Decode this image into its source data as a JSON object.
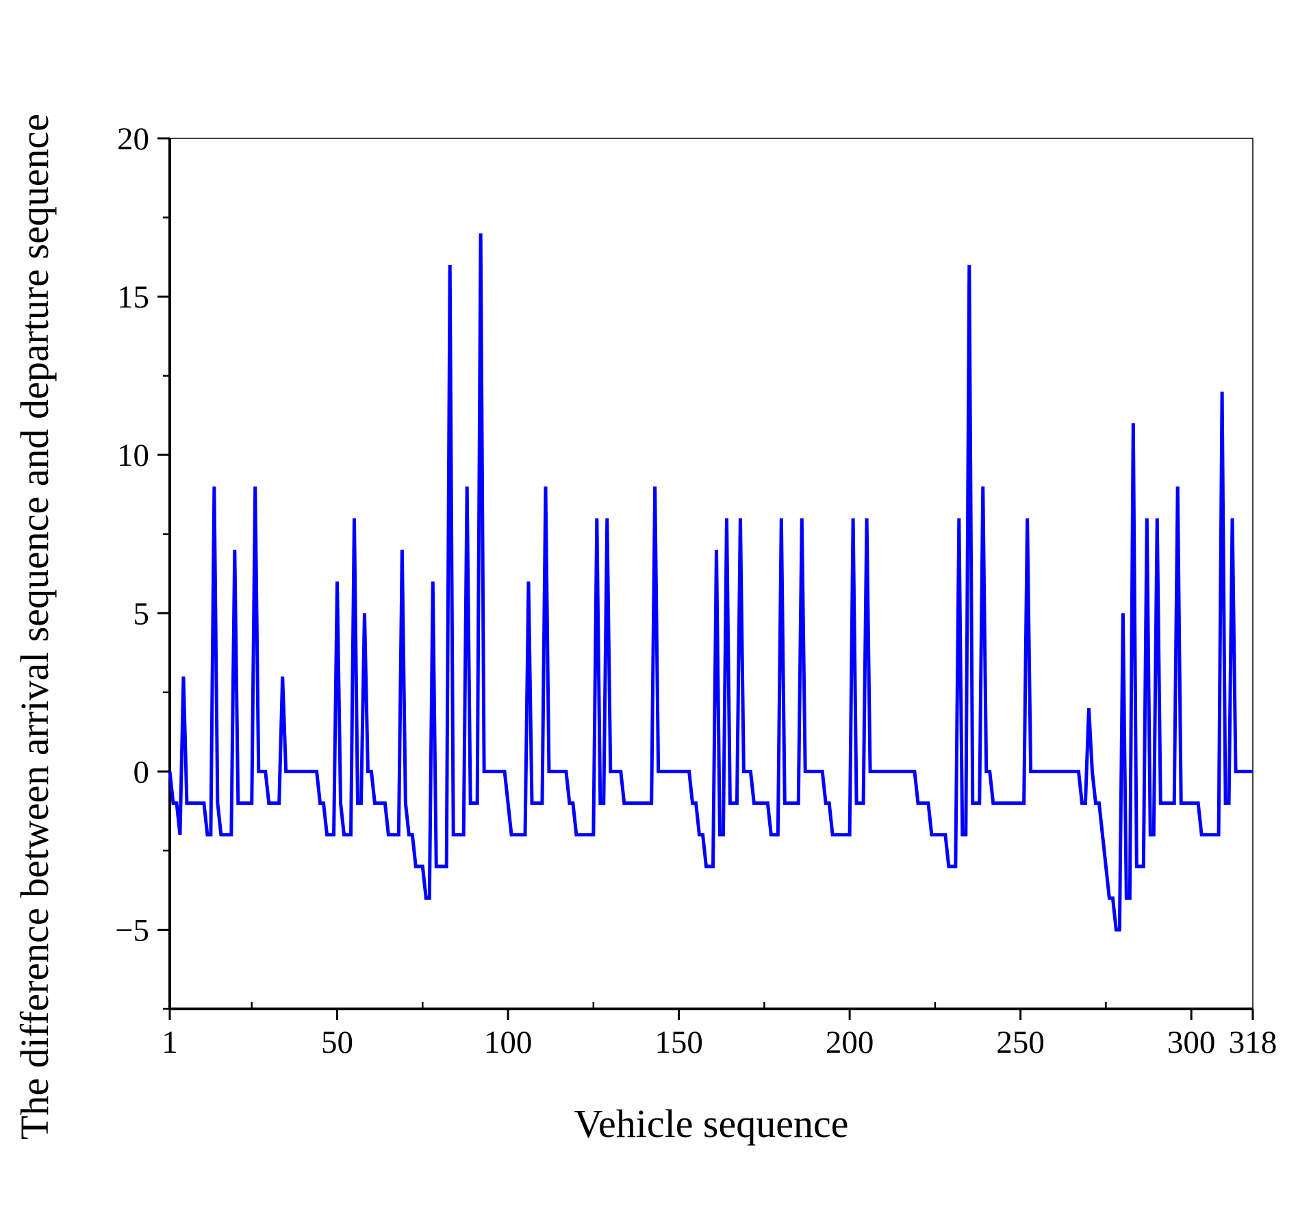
{
  "chart_data": {
    "type": "line",
    "x_label": "Vehicle sequence",
    "y_label": "The difference between arrival sequence and departure sequence",
    "color": "#0000ff",
    "xlim": [
      1,
      318
    ],
    "ylim": [
      -7.5,
      20
    ],
    "xticks": [
      1,
      50,
      100,
      150,
      200,
      250,
      300,
      318
    ],
    "xminorticks": [
      25,
      75,
      125,
      175,
      225,
      275
    ],
    "yticks": [
      {
        "value": -5,
        "label": "−5"
      },
      0,
      5,
      10,
      15,
      20
    ],
    "yminorticks": [
      -7.5,
      -2.5,
      2.5,
      7.5,
      12.5,
      17.5
    ],
    "x": [
      1,
      2,
      3,
      4,
      5,
      6,
      7,
      8,
      9,
      10,
      11,
      12,
      13,
      14,
      15,
      16,
      17,
      18,
      19,
      20,
      21,
      22,
      23,
      24,
      25,
      26,
      27,
      28,
      29,
      30,
      31,
      32,
      33,
      34,
      35,
      36,
      37,
      38,
      39,
      40,
      41,
      42,
      43,
      44,
      45,
      46,
      47,
      48,
      49,
      50,
      51,
      52,
      53,
      54,
      55,
      56,
      57,
      58,
      59,
      60,
      61,
      62,
      63,
      64,
      65,
      66,
      67,
      68,
      69,
      70,
      71,
      72,
      73,
      74,
      75,
      76,
      77,
      78,
      79,
      80,
      81,
      82,
      83,
      84,
      85,
      86,
      87,
      88,
      89,
      90,
      91,
      92,
      93,
      94,
      95,
      96,
      97,
      98,
      99,
      100,
      101,
      102,
      103,
      104,
      105,
      106,
      107,
      108,
      109,
      110,
      111,
      112,
      113,
      114,
      115,
      116,
      117,
      118,
      119,
      120,
      121,
      122,
      123,
      124,
      125,
      126,
      127,
      128,
      129,
      130,
      131,
      132,
      133,
      134,
      135,
      136,
      137,
      138,
      139,
      140,
      141,
      142,
      143,
      144,
      145,
      146,
      147,
      148,
      149,
      150,
      151,
      152,
      153,
      154,
      155,
      156,
      157,
      158,
      159,
      160,
      161,
      162,
      163,
      164,
      165,
      166,
      167,
      168,
      169,
      170,
      171,
      172,
      173,
      174,
      175,
      176,
      177,
      178,
      179,
      180,
      181,
      182,
      183,
      184,
      185,
      186,
      187,
      188,
      189,
      190,
      191,
      192,
      193,
      194,
      195,
      196,
      197,
      198,
      199,
      200,
      201,
      202,
      203,
      204,
      205,
      206,
      207,
      208,
      209,
      210,
      211,
      212,
      213,
      214,
      215,
      216,
      217,
      218,
      219,
      220,
      221,
      222,
      223,
      224,
      225,
      226,
      227,
      228,
      229,
      230,
      231,
      232,
      233,
      234,
      235,
      236,
      237,
      238,
      239,
      240,
      241,
      242,
      243,
      244,
      245,
      246,
      247,
      248,
      249,
      250,
      251,
      252,
      253,
      254,
      255,
      256,
      257,
      258,
      259,
      260,
      261,
      262,
      263,
      264,
      265,
      266,
      267,
      268,
      269,
      270,
      271,
      272,
      273,
      274,
      275,
      276,
      277,
      278,
      279,
      280,
      281,
      282,
      283,
      284,
      285,
      286,
      287,
      288,
      289,
      290,
      291,
      292,
      293,
      294,
      295,
      296,
      297,
      298,
      299,
      300,
      301,
      302,
      303,
      304,
      305,
      306,
      307,
      308,
      309,
      310,
      311,
      312,
      313,
      314,
      315,
      316,
      317,
      318
    ],
    "values": [
      0,
      -1,
      -1,
      -2,
      3,
      -1,
      -1,
      -1,
      -1,
      -1,
      -1,
      -2,
      -2,
      9,
      -1,
      -2,
      -2,
      -2,
      -2,
      7,
      -1,
      -1,
      -1,
      -1,
      -1,
      9,
      0,
      0,
      0,
      -1,
      -1,
      -1,
      -1,
      3,
      0,
      0,
      0,
      0,
      0,
      0,
      0,
      0,
      0,
      0,
      -1,
      -1,
      -2,
      -2,
      -2,
      6,
      -1,
      -2,
      -2,
      -2,
      8,
      -1,
      -1,
      5,
      0,
      0,
      -1,
      -1,
      -1,
      -1,
      -2,
      -2,
      -2,
      -2,
      7,
      -1,
      -2,
      -2,
      -3,
      -3,
      -3,
      -4,
      -4,
      6,
      -3,
      -3,
      -3,
      -3,
      16,
      -2,
      -2,
      -2,
      -2,
      9,
      -1,
      -1,
      -1,
      17,
      0,
      0,
      0,
      0,
      0,
      0,
      0,
      -1,
      -2,
      -2,
      -2,
      -2,
      -2,
      6,
      -1,
      -1,
      -1,
      -1,
      9,
      0,
      0,
      0,
      0,
      0,
      0,
      -1,
      -1,
      -2,
      -2,
      -2,
      -2,
      -2,
      -2,
      8,
      -1,
      -1,
      8,
      0,
      0,
      0,
      0,
      -1,
      -1,
      -1,
      -1,
      -1,
      -1,
      -1,
      -1,
      -1,
      9,
      0,
      0,
      0,
      0,
      0,
      0,
      0,
      0,
      0,
      0,
      -1,
      -1,
      -2,
      -2,
      -3,
      -3,
      -3,
      7,
      -2,
      -2,
      8,
      -1,
      -1,
      -1,
      8,
      0,
      0,
      0,
      -1,
      -1,
      -1,
      -1,
      -1,
      -2,
      -2,
      -2,
      8,
      -1,
      -1,
      -1,
      -1,
      -1,
      8,
      0,
      0,
      0,
      0,
      0,
      0,
      -1,
      -1,
      -2,
      -2,
      -2,
      -2,
      -2,
      -2,
      8,
      -1,
      -1,
      -1,
      8,
      0,
      0,
      0,
      0,
      0,
      0,
      0,
      0,
      0,
      0,
      0,
      0,
      0,
      0,
      -1,
      -1,
      -1,
      -1,
      -2,
      -2,
      -2,
      -2,
      -2,
      -3,
      -3,
      -3,
      8,
      -2,
      -2,
      16,
      -1,
      -1,
      -1,
      9,
      0,
      0,
      -1,
      -1,
      -1,
      -1,
      -1,
      -1,
      -1,
      -1,
      -1,
      -1,
      8,
      0,
      0,
      0,
      0,
      0,
      0,
      0,
      0,
      0,
      0,
      0,
      0,
      0,
      0,
      0,
      -1,
      -1,
      2,
      0,
      -1,
      -1,
      -2,
      -3,
      -4,
      -4,
      -5,
      -5,
      5,
      -4,
      -4,
      11,
      -3,
      -3,
      -3,
      8,
      -2,
      -2,
      8,
      -1,
      -1,
      -1,
      -1,
      -1,
      9,
      -1,
      -1,
      -1,
      -1,
      -1,
      -1,
      -2,
      -2,
      -2,
      -2,
      -2,
      -2,
      12,
      -1,
      -1,
      8,
      0,
      0,
      0,
      0,
      0,
      0
    ]
  }
}
